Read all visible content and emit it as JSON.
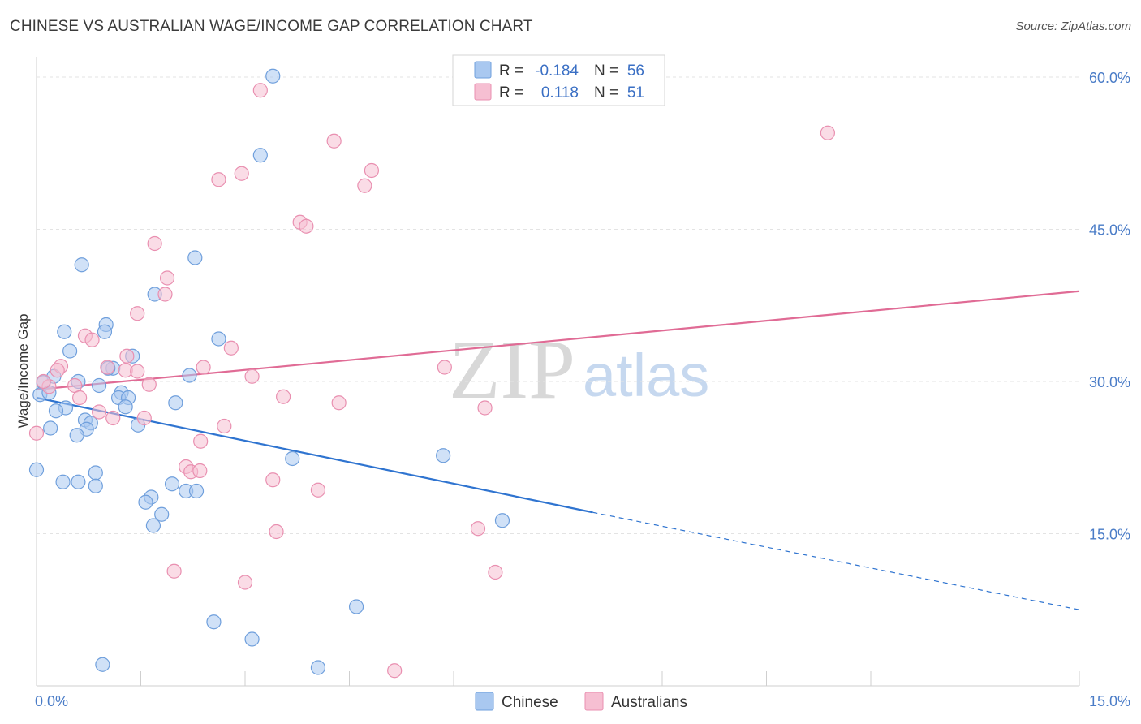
{
  "title": "CHINESE VS AUSTRALIAN WAGE/INCOME GAP CORRELATION CHART",
  "source": "Source: ZipAtlas.com",
  "watermark": {
    "zip": "ZIP",
    "atlas": "atlas"
  },
  "colors": {
    "chinese_fill": "#a9c8f0",
    "chinese_stroke": "#6f9fdc",
    "chinese_line": "#2f74d0",
    "australian_fill": "#f6bfd2",
    "australian_stroke": "#e98fb0",
    "australian_line": "#e06b95",
    "tick_text": "#4a7cc7",
    "grid": "#e3e3e3"
  },
  "legend": {
    "rows": [
      {
        "r_label": "R =",
        "r_value": "-0.184",
        "n_label": "N =",
        "n_value": "56"
      },
      {
        "r_label": "R =",
        "r_value": "0.118",
        "n_label": "N =",
        "n_value": "51"
      }
    ]
  },
  "chart_data": {
    "type": "scatter",
    "title": "CHINESE VS AUSTRALIAN WAGE/INCOME GAP CORRELATION CHART",
    "xlabel": "",
    "ylabel": "Wage/Income Gap",
    "xlim": [
      0,
      15
    ],
    "ylim": [
      0,
      62
    ],
    "x_tick_labels": [
      "0.0%",
      "15.0%"
    ],
    "y_ticks": [
      15,
      30,
      45,
      60
    ],
    "y_tick_labels": [
      "15.0%",
      "30.0%",
      "45.0%",
      "60.0%"
    ],
    "grid": true,
    "legend_position": "top-center",
    "series": [
      {
        "name": "Chinese",
        "r": -0.184,
        "n": 56,
        "trend": {
          "x0": 0,
          "y0": 28.4,
          "x1": 8.0,
          "y1": 17.1,
          "dash_from_x": 8.0,
          "x_end": 15,
          "y_end": 7.5
        },
        "points": [
          [
            3.4,
            60.1
          ],
          [
            3.22,
            52.3
          ],
          [
            0.65,
            41.5
          ],
          [
            2.28,
            42.2
          ],
          [
            1.7,
            38.6
          ],
          [
            0.4,
            34.9
          ],
          [
            1.0,
            35.6
          ],
          [
            0.98,
            34.9
          ],
          [
            2.62,
            34.2
          ],
          [
            0.48,
            33.0
          ],
          [
            1.38,
            32.5
          ],
          [
            1.1,
            31.3
          ],
          [
            1.03,
            31.3
          ],
          [
            0.25,
            30.5
          ],
          [
            2.2,
            30.6
          ],
          [
            0.1,
            29.9
          ],
          [
            0.6,
            30.0
          ],
          [
            0.9,
            29.6
          ],
          [
            0.05,
            28.7
          ],
          [
            0.18,
            28.9
          ],
          [
            1.22,
            28.9
          ],
          [
            1.18,
            28.4
          ],
          [
            1.32,
            28.4
          ],
          [
            2.0,
            27.9
          ],
          [
            0.42,
            27.4
          ],
          [
            1.28,
            27.5
          ],
          [
            0.28,
            27.1
          ],
          [
            0.7,
            26.2
          ],
          [
            0.78,
            25.9
          ],
          [
            1.46,
            25.7
          ],
          [
            0.2,
            25.4
          ],
          [
            0.72,
            25.3
          ],
          [
            0.58,
            24.7
          ],
          [
            0.0,
            21.3
          ],
          [
            3.68,
            22.4
          ],
          [
            5.85,
            22.7
          ],
          [
            0.85,
            21.0
          ],
          [
            0.38,
            20.1
          ],
          [
            0.6,
            20.1
          ],
          [
            0.85,
            19.7
          ],
          [
            1.95,
            19.9
          ],
          [
            2.15,
            19.2
          ],
          [
            2.3,
            19.2
          ],
          [
            1.65,
            18.6
          ],
          [
            1.57,
            18.1
          ],
          [
            1.8,
            16.9
          ],
          [
            1.68,
            15.8
          ],
          [
            6.7,
            16.3
          ],
          [
            4.6,
            7.8
          ],
          [
            2.55,
            6.3
          ],
          [
            3.1,
            4.6
          ],
          [
            0.95,
            2.1
          ],
          [
            4.05,
            1.8
          ]
        ]
      },
      {
        "name": "Australians",
        "r": 0.118,
        "n": 51,
        "trend": {
          "x0": 0,
          "y0": 29.2,
          "x1": 15,
          "y1": 38.9
        },
        "points": [
          [
            3.22,
            58.7
          ],
          [
            11.38,
            54.5
          ],
          [
            4.28,
            53.7
          ],
          [
            4.82,
            50.8
          ],
          [
            2.95,
            50.5
          ],
          [
            2.62,
            49.9
          ],
          [
            4.72,
            49.3
          ],
          [
            3.79,
            45.7
          ],
          [
            3.88,
            45.3
          ],
          [
            1.7,
            43.6
          ],
          [
            1.88,
            40.2
          ],
          [
            1.85,
            38.6
          ],
          [
            1.45,
            36.7
          ],
          [
            0.7,
            34.5
          ],
          [
            0.8,
            34.1
          ],
          [
            2.8,
            33.3
          ],
          [
            1.3,
            32.5
          ],
          [
            0.35,
            31.5
          ],
          [
            0.3,
            31.1
          ],
          [
            1.02,
            31.4
          ],
          [
            1.28,
            31.1
          ],
          [
            2.4,
            31.4
          ],
          [
            5.87,
            31.4
          ],
          [
            1.45,
            31.0
          ],
          [
            3.1,
            30.5
          ],
          [
            0.55,
            29.6
          ],
          [
            1.62,
            29.7
          ],
          [
            0.18,
            29.5
          ],
          [
            0.1,
            30.0
          ],
          [
            0.62,
            28.4
          ],
          [
            3.55,
            28.5
          ],
          [
            4.35,
            27.9
          ],
          [
            6.45,
            27.4
          ],
          [
            0.9,
            27.0
          ],
          [
            1.1,
            26.4
          ],
          [
            1.55,
            26.4
          ],
          [
            2.7,
            25.6
          ],
          [
            0.0,
            24.9
          ],
          [
            2.36,
            24.1
          ],
          [
            2.15,
            21.6
          ],
          [
            2.22,
            21.1
          ],
          [
            2.35,
            21.2
          ],
          [
            3.4,
            20.3
          ],
          [
            4.05,
            19.3
          ],
          [
            3.45,
            15.2
          ],
          [
            6.35,
            15.5
          ],
          [
            1.98,
            11.3
          ],
          [
            6.6,
            11.2
          ],
          [
            3.0,
            10.2
          ],
          [
            5.15,
            1.5
          ]
        ]
      }
    ]
  }
}
